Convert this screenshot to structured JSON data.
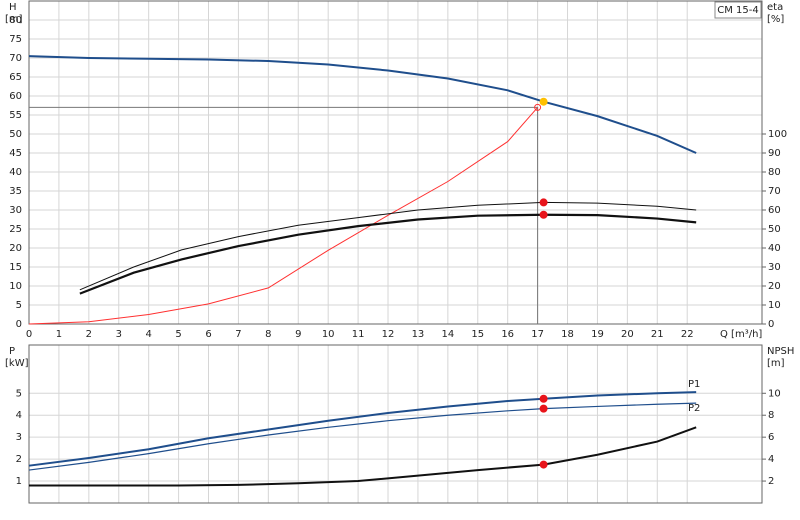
{
  "chart_data": [
    {
      "type": "line",
      "title": "CM 15-4",
      "ylabel": "H",
      "yunit": "[m]",
      "y2label": "eta",
      "y2unit": "[%]",
      "xlabel": "Q [m³/h]",
      "xlim": [
        0,
        24.5
      ],
      "ylim": [
        0,
        85
      ],
      "y2lim": [
        0,
        170
      ],
      "xticks": [
        0,
        1,
        2,
        3,
        4,
        5,
        6,
        7,
        8,
        9,
        10,
        11,
        12,
        13,
        14,
        15,
        16,
        17,
        18,
        19,
        20,
        21,
        22
      ],
      "yticks": [
        0,
        5,
        10,
        15,
        20,
        25,
        30,
        35,
        40,
        45,
        50,
        55,
        60,
        65,
        70,
        75,
        80
      ],
      "y2ticks": [
        0,
        10,
        20,
        30,
        40,
        50,
        60,
        70,
        80,
        90,
        100
      ],
      "grid": true,
      "xtick_labels": true,
      "guide": {
        "x": 17,
        "y": 57,
        "color": "#777"
      },
      "series": [
        {
          "style": "line",
          "color": "#1f4e8c",
          "width": 2,
          "x": [
            0,
            2,
            4,
            6,
            8,
            10,
            12,
            14,
            16,
            17.2,
            19,
            21,
            22.3
          ],
          "values": [
            70.5,
            70,
            69.8,
            69.6,
            69.2,
            68.3,
            66.7,
            64.6,
            61.5,
            58.5,
            54.7,
            49.5,
            45
          ]
        },
        {
          "style": "line",
          "color": "#ff3030",
          "width": 1,
          "x": [
            0,
            2,
            4,
            6,
            8,
            10,
            12,
            14,
            16,
            17
          ],
          "values": [
            0,
            0.6,
            2.5,
            5.3,
            9.5,
            19.4,
            28.6,
            37.5,
            48,
            57
          ]
        },
        {
          "style": "line",
          "color": "#111",
          "width": 1,
          "axis": "y2",
          "x": [
            1.7,
            3.5,
            5.1,
            7,
            9,
            11,
            13,
            15,
            17.2,
            19,
            21,
            22.3
          ],
          "values": [
            18,
            30,
            39,
            46,
            52,
            56,
            60,
            62.5,
            64,
            63.6,
            62,
            60
          ]
        },
        {
          "style": "line",
          "color": "#111",
          "width": 2.2,
          "axis": "y2",
          "x": [
            1.7,
            3.5,
            5.1,
            7,
            9,
            11,
            13,
            15,
            17.2,
            19,
            21,
            22.3
          ],
          "values": [
            16,
            27,
            34,
            41,
            47,
            51.5,
            55,
            57,
            57.5,
            57.3,
            55.5,
            53.5
          ]
        },
        {
          "style": "marker",
          "color": "#ffc000",
          "x": [
            17.2
          ],
          "values": [
            58.5
          ]
        },
        {
          "style": "marker",
          "color": "#ff3030",
          "hollow": true,
          "x": [
            17
          ],
          "values": [
            57
          ]
        },
        {
          "style": "marker",
          "color": "#e8141b",
          "axis": "y2",
          "x": [
            17.2,
            17.2
          ],
          "values": [
            64,
            57.5
          ]
        }
      ]
    },
    {
      "type": "line",
      "ylabel": "P",
      "yunit": "[kW]",
      "y2label": "NPSH",
      "y2unit": "[m]",
      "xlim": [
        0,
        24.5
      ],
      "ylim": [
        0,
        7.2
      ],
      "y2lim": [
        0,
        14.4
      ],
      "xticks": [
        0,
        1,
        2,
        3,
        4,
        5,
        6,
        7,
        8,
        9,
        10,
        11,
        12,
        13,
        14,
        15,
        16,
        17,
        18,
        19,
        20,
        21,
        22
      ],
      "yticks": [
        1,
        2,
        3,
        4,
        5
      ],
      "y2ticks": [
        2,
        4,
        6,
        8,
        10
      ],
      "grid": true,
      "xtick_labels": false,
      "series": [
        {
          "style": "line",
          "name": "P1",
          "color": "#1f4e8c",
          "width": 2,
          "x": [
            0,
            2,
            4,
            6,
            8,
            10,
            12,
            14,
            16,
            17.2,
            19,
            21,
            22.3
          ],
          "values": [
            1.7,
            2.05,
            2.45,
            2.95,
            3.35,
            3.75,
            4.1,
            4.4,
            4.65,
            4.75,
            4.9,
            5.0,
            5.05
          ]
        },
        {
          "style": "line",
          "name": "P2",
          "color": "#1f4e8c",
          "width": 1.2,
          "x": [
            0,
            2,
            4,
            6,
            8,
            10,
            12,
            14,
            16,
            17.2,
            19,
            21,
            22.3
          ],
          "values": [
            1.5,
            1.85,
            2.25,
            2.7,
            3.1,
            3.45,
            3.75,
            4.0,
            4.2,
            4.3,
            4.4,
            4.5,
            4.55
          ]
        },
        {
          "style": "line",
          "color": "#111",
          "width": 2,
          "axis": "y2",
          "x": [
            0,
            5,
            7,
            9,
            11,
            13,
            15,
            17.2,
            19,
            21,
            22.3
          ],
          "values": [
            1.6,
            1.6,
            1.65,
            1.8,
            2.0,
            2.5,
            3.0,
            3.5,
            4.4,
            5.6,
            6.9
          ]
        },
        {
          "style": "marker",
          "color": "#e8141b",
          "x": [
            17.2,
            17.2
          ],
          "values": [
            4.75,
            4.3
          ]
        },
        {
          "style": "marker",
          "color": "#e8141b",
          "axis": "y2",
          "x": [
            17.2
          ],
          "values": [
            3.5
          ]
        }
      ]
    }
  ]
}
